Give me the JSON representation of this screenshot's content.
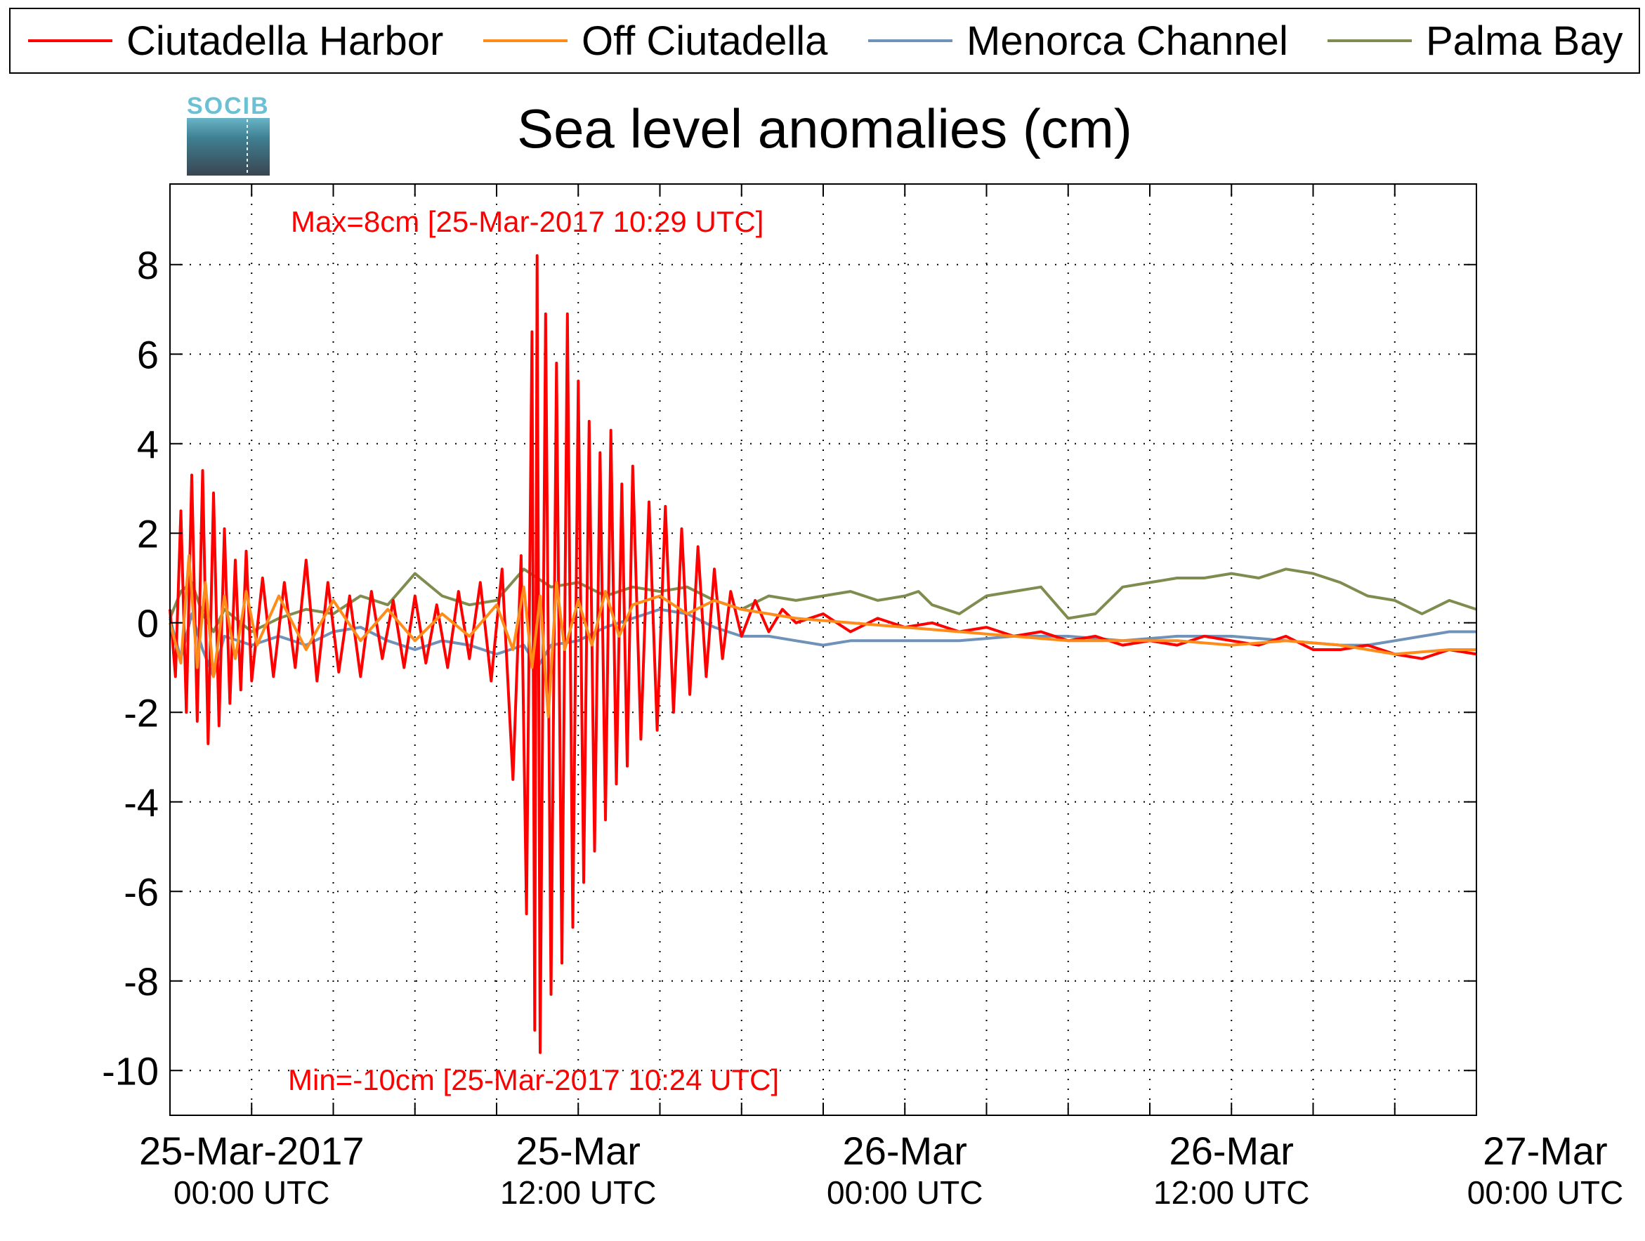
{
  "chart_data": {
    "type": "line",
    "title": "Sea level anomalies (cm)",
    "xlabel": "",
    "ylabel": "",
    "x_unit": "hours since 25-Mar-2017 00:00 UTC",
    "xlim": [
      -3,
      45
    ],
    "ylim": [
      -11,
      9.8
    ],
    "yticks": [
      8,
      6,
      4,
      2,
      0,
      -2,
      -4,
      -6,
      -8,
      -10
    ],
    "grid": true,
    "legend_position": "top",
    "xticks": [
      {
        "x": 0,
        "line1": "25-Mar-2017",
        "line2": "00:00 UTC"
      },
      {
        "x": 12,
        "line1": "25-Mar",
        "line2": "12:00 UTC"
      },
      {
        "x": 24,
        "line1": "26-Mar",
        "line2": "00:00 UTC"
      },
      {
        "x": 36,
        "line1": "26-Mar",
        "line2": "12:00 UTC"
      },
      {
        "x": 48,
        "line1": "27-Mar",
        "line2": "00:00 UTC"
      }
    ],
    "series": [
      {
        "name": "Ciutadella Harbor",
        "color": "#ff0000",
        "points": [
          [
            -3,
            0.3
          ],
          [
            -2.8,
            -1.2
          ],
          [
            -2.6,
            2.5
          ],
          [
            -2.4,
            -2.0
          ],
          [
            -2.2,
            3.3
          ],
          [
            -2,
            -2.2
          ],
          [
            -1.8,
            3.4
          ],
          [
            -1.6,
            -2.7
          ],
          [
            -1.4,
            2.9
          ],
          [
            -1.2,
            -2.3
          ],
          [
            -1,
            2.1
          ],
          [
            -0.8,
            -1.8
          ],
          [
            -0.6,
            1.4
          ],
          [
            -0.4,
            -1.5
          ],
          [
            -0.2,
            1.6
          ],
          [
            0,
            -1.3
          ],
          [
            0.4,
            1.0
          ],
          [
            0.8,
            -1.2
          ],
          [
            1.2,
            0.9
          ],
          [
            1.6,
            -1.0
          ],
          [
            2,
            1.4
          ],
          [
            2.4,
            -1.3
          ],
          [
            2.8,
            0.9
          ],
          [
            3.2,
            -1.1
          ],
          [
            3.6,
            0.6
          ],
          [
            4,
            -1.2
          ],
          [
            4.4,
            0.7
          ],
          [
            4.8,
            -0.8
          ],
          [
            5.2,
            0.5
          ],
          [
            5.6,
            -1.0
          ],
          [
            6,
            0.6
          ],
          [
            6.4,
            -0.9
          ],
          [
            6.8,
            0.4
          ],
          [
            7.2,
            -1.0
          ],
          [
            7.6,
            0.7
          ],
          [
            8,
            -0.8
          ],
          [
            8.4,
            0.9
          ],
          [
            8.8,
            -1.3
          ],
          [
            9.2,
            1.2
          ],
          [
            9.6,
            -3.5
          ],
          [
            9.9,
            1.5
          ],
          [
            10.1,
            -6.5
          ],
          [
            10.3,
            6.5
          ],
          [
            10.4,
            -9.1
          ],
          [
            10.49,
            8.2
          ],
          [
            10.6,
            -9.6
          ],
          [
            10.8,
            6.9
          ],
          [
            11,
            -8.3
          ],
          [
            11.2,
            5.8
          ],
          [
            11.4,
            -7.6
          ],
          [
            11.6,
            6.9
          ],
          [
            11.8,
            -6.8
          ],
          [
            12,
            5.4
          ],
          [
            12.2,
            -5.8
          ],
          [
            12.4,
            4.5
          ],
          [
            12.6,
            -5.1
          ],
          [
            12.8,
            3.8
          ],
          [
            13,
            -4.4
          ],
          [
            13.2,
            4.3
          ],
          [
            13.4,
            -3.6
          ],
          [
            13.6,
            3.1
          ],
          [
            13.8,
            -3.2
          ],
          [
            14,
            3.5
          ],
          [
            14.3,
            -2.6
          ],
          [
            14.6,
            2.7
          ],
          [
            14.9,
            -2.4
          ],
          [
            15.2,
            2.6
          ],
          [
            15.5,
            -2.0
          ],
          [
            15.8,
            2.1
          ],
          [
            16.1,
            -1.6
          ],
          [
            16.4,
            1.7
          ],
          [
            16.7,
            -1.2
          ],
          [
            17,
            1.2
          ],
          [
            17.3,
            -0.8
          ],
          [
            17.6,
            0.7
          ],
          [
            18,
            -0.3
          ],
          [
            18.5,
            0.5
          ],
          [
            19,
            -0.2
          ],
          [
            19.5,
            0.3
          ],
          [
            20,
            0.0
          ],
          [
            21,
            0.2
          ],
          [
            22,
            -0.2
          ],
          [
            23,
            0.1
          ],
          [
            24,
            -0.1
          ],
          [
            25,
            0.0
          ],
          [
            26,
            -0.2
          ],
          [
            27,
            -0.1
          ],
          [
            28,
            -0.3
          ],
          [
            29,
            -0.2
          ],
          [
            30,
            -0.4
          ],
          [
            31,
            -0.3
          ],
          [
            32,
            -0.5
          ],
          [
            33,
            -0.4
          ],
          [
            34,
            -0.5
          ],
          [
            35,
            -0.3
          ],
          [
            36,
            -0.4
          ],
          [
            37,
            -0.5
          ],
          [
            38,
            -0.3
          ],
          [
            39,
            -0.6
          ],
          [
            40,
            -0.6
          ],
          [
            41,
            -0.5
          ],
          [
            42,
            -0.7
          ],
          [
            43,
            -0.8
          ],
          [
            44,
            -0.6
          ],
          [
            45,
            -0.7
          ]
        ]
      },
      {
        "name": "Off Ciutadella",
        "color": "#ff8c1a",
        "points": [
          [
            -3,
            0.0
          ],
          [
            -2.6,
            -0.9
          ],
          [
            -2.3,
            1.5
          ],
          [
            -2,
            -1.0
          ],
          [
            -1.7,
            0.9
          ],
          [
            -1.4,
            -1.2
          ],
          [
            -1,
            0.6
          ],
          [
            -0.6,
            -0.8
          ],
          [
            -0.2,
            0.7
          ],
          [
            0.2,
            -0.5
          ],
          [
            1,
            0.6
          ],
          [
            2,
            -0.6
          ],
          [
            3,
            0.5
          ],
          [
            4,
            -0.4
          ],
          [
            5,
            0.3
          ],
          [
            6,
            -0.4
          ],
          [
            7,
            0.2
          ],
          [
            8,
            -0.3
          ],
          [
            9,
            0.4
          ],
          [
            9.6,
            -0.6
          ],
          [
            10,
            0.8
          ],
          [
            10.3,
            -1.0
          ],
          [
            10.6,
            0.6
          ],
          [
            10.9,
            -2.1
          ],
          [
            11.2,
            0.9
          ],
          [
            11.5,
            -0.6
          ],
          [
            12,
            0.5
          ],
          [
            12.5,
            -0.5
          ],
          [
            13,
            0.7
          ],
          [
            13.5,
            -0.3
          ],
          [
            14,
            0.4
          ],
          [
            15,
            0.6
          ],
          [
            16,
            0.2
          ],
          [
            17,
            0.5
          ],
          [
            18,
            0.3
          ],
          [
            19,
            0.2
          ],
          [
            20,
            0.1
          ],
          [
            22,
            0.0
          ],
          [
            24,
            -0.1
          ],
          [
            26,
            -0.2
          ],
          [
            28,
            -0.3
          ],
          [
            30,
            -0.4
          ],
          [
            32,
            -0.4
          ],
          [
            34,
            -0.4
          ],
          [
            36,
            -0.5
          ],
          [
            38,
            -0.4
          ],
          [
            40,
            -0.5
          ],
          [
            42,
            -0.7
          ],
          [
            44,
            -0.6
          ],
          [
            45,
            -0.6
          ]
        ]
      },
      {
        "name": "Menorca Channel",
        "color": "#6f93b8",
        "points": [
          [
            -3,
            0.1
          ],
          [
            -2.6,
            -0.8
          ],
          [
            -2.2,
            0.2
          ],
          [
            -1.8,
            -0.6
          ],
          [
            -1.4,
            -1.2
          ],
          [
            -1,
            -0.3
          ],
          [
            0,
            -0.5
          ],
          [
            1,
            -0.3
          ],
          [
            2,
            -0.5
          ],
          [
            3,
            -0.2
          ],
          [
            4,
            -0.1
          ],
          [
            5,
            -0.4
          ],
          [
            6,
            -0.6
          ],
          [
            7,
            -0.4
          ],
          [
            8,
            -0.5
          ],
          [
            9,
            -0.7
          ],
          [
            10,
            -0.5
          ],
          [
            10.5,
            -1.0
          ],
          [
            11,
            -0.5
          ],
          [
            12,
            -0.4
          ],
          [
            13,
            -0.1
          ],
          [
            14,
            0.1
          ],
          [
            15,
            0.3
          ],
          [
            16,
            0.2
          ],
          [
            17,
            -0.1
          ],
          [
            18,
            -0.3
          ],
          [
            19,
            -0.3
          ],
          [
            20,
            -0.4
          ],
          [
            21,
            -0.5
          ],
          [
            22,
            -0.4
          ],
          [
            24,
            -0.4
          ],
          [
            26,
            -0.4
          ],
          [
            28,
            -0.3
          ],
          [
            30,
            -0.3
          ],
          [
            32,
            -0.4
          ],
          [
            34,
            -0.3
          ],
          [
            36,
            -0.3
          ],
          [
            38,
            -0.4
          ],
          [
            40,
            -0.5
          ],
          [
            41,
            -0.5
          ],
          [
            42,
            -0.4
          ],
          [
            43,
            -0.3
          ],
          [
            44,
            -0.2
          ],
          [
            45,
            -0.2
          ]
        ]
      },
      {
        "name": "Palma Bay",
        "color": "#7f8c4f",
        "points": [
          [
            -3,
            0.1
          ],
          [
            -2.6,
            0.7
          ],
          [
            -2.2,
            0.9
          ],
          [
            -1.8,
            0.2
          ],
          [
            -1.4,
            -0.2
          ],
          [
            -1,
            0.3
          ],
          [
            0,
            -0.2
          ],
          [
            1,
            0.1
          ],
          [
            2,
            0.3
          ],
          [
            3,
            0.2
          ],
          [
            4,
            0.6
          ],
          [
            5,
            0.4
          ],
          [
            6,
            1.1
          ],
          [
            7,
            0.6
          ],
          [
            8,
            0.4
          ],
          [
            9,
            0.5
          ],
          [
            10,
            1.2
          ],
          [
            11,
            0.8
          ],
          [
            12,
            0.9
          ],
          [
            13,
            0.6
          ],
          [
            14,
            0.8
          ],
          [
            15,
            0.7
          ],
          [
            16,
            0.8
          ],
          [
            17,
            0.5
          ],
          [
            18,
            0.3
          ],
          [
            19,
            0.6
          ],
          [
            20,
            0.5
          ],
          [
            21,
            0.6
          ],
          [
            22,
            0.7
          ],
          [
            23,
            0.5
          ],
          [
            24,
            0.6
          ],
          [
            24.5,
            0.7
          ],
          [
            25,
            0.4
          ],
          [
            26,
            0.2
          ],
          [
            27,
            0.6
          ],
          [
            28,
            0.7
          ],
          [
            29,
            0.8
          ],
          [
            30,
            0.1
          ],
          [
            31,
            0.2
          ],
          [
            32,
            0.8
          ],
          [
            33,
            0.9
          ],
          [
            34,
            1.0
          ],
          [
            35,
            1.0
          ],
          [
            36,
            1.1
          ],
          [
            37,
            1.0
          ],
          [
            38,
            1.2
          ],
          [
            39,
            1.1
          ],
          [
            40,
            0.9
          ],
          [
            41,
            0.6
          ],
          [
            42,
            0.5
          ],
          [
            43,
            0.2
          ],
          [
            44,
            0.5
          ],
          [
            45,
            0.3
          ]
        ]
      }
    ],
    "annotations": {
      "max_label": "Max=8cm [25-Mar-2017 10:29 UTC]",
      "min_label": "Min=-10cm [25-Mar-2017 10:24 UTC]",
      "color": "#ff0000"
    },
    "logo_text": "SOCIB"
  }
}
